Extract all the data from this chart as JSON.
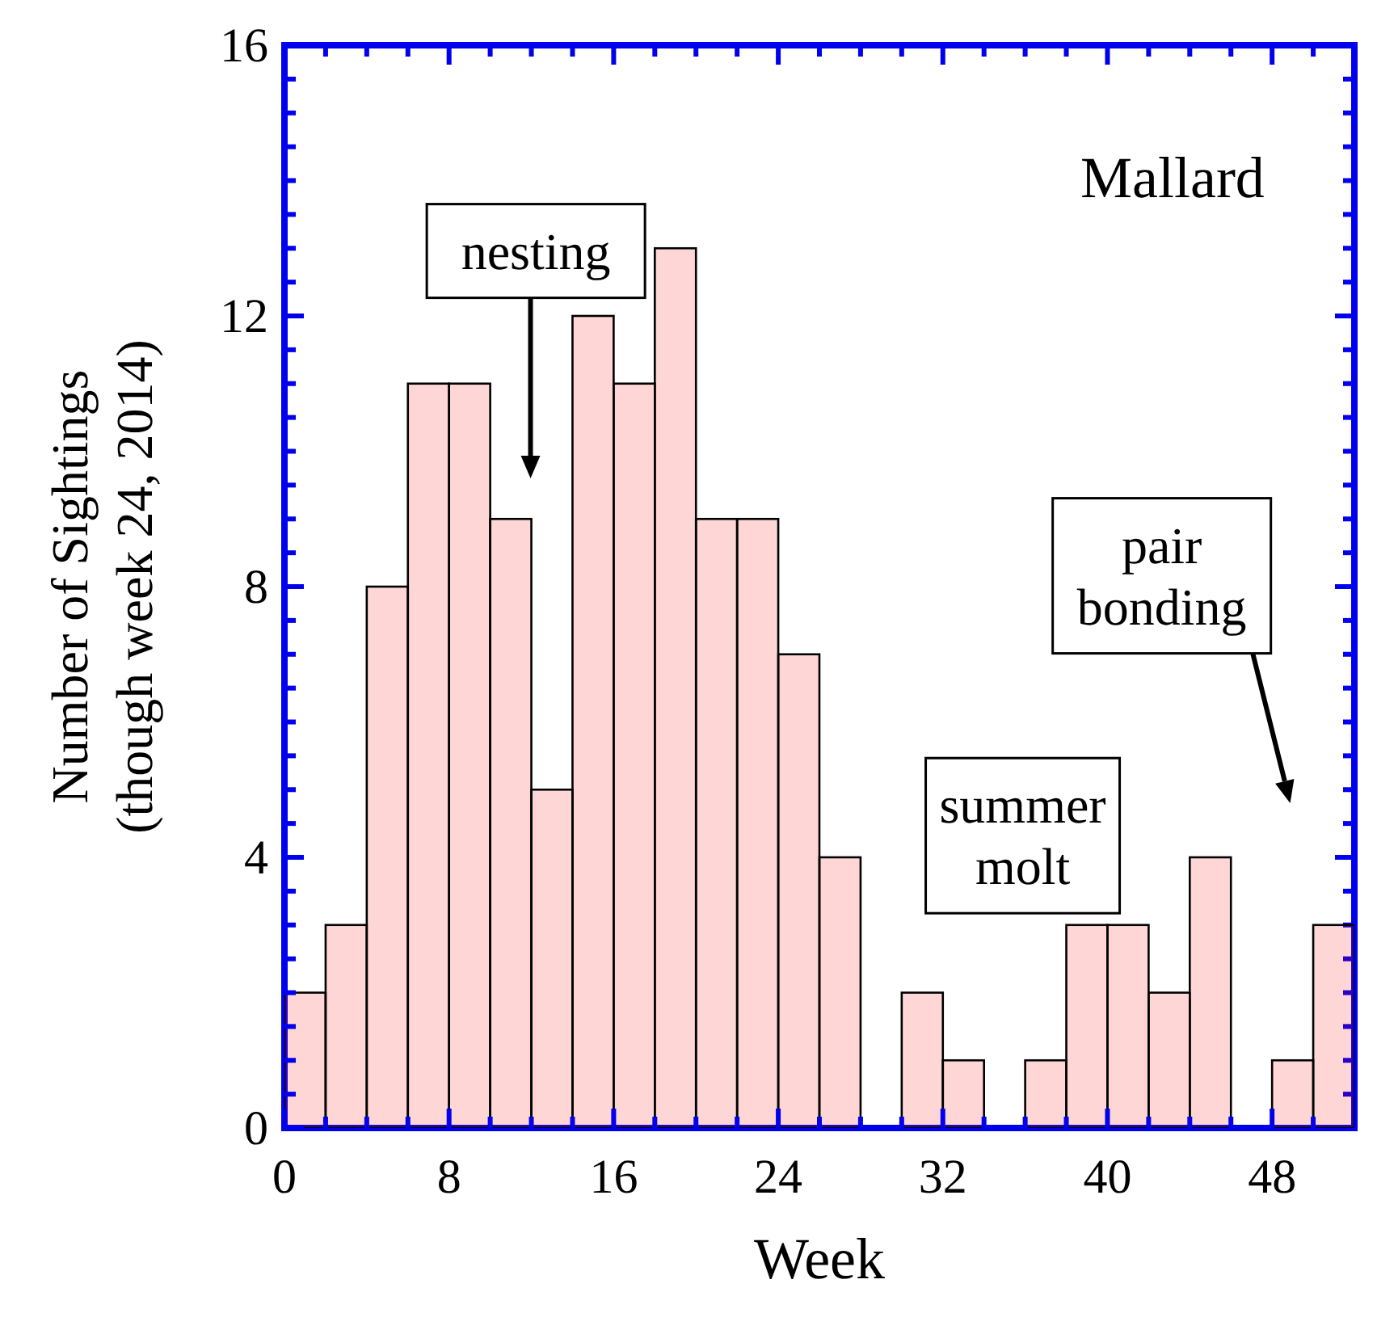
{
  "chart_data": {
    "type": "histogram",
    "xlabel": "Week",
    "ylabel": "Number of Sightings\n(though week 24, 2014)",
    "bins": [
      0,
      2,
      4,
      6,
      8,
      10,
      12,
      14,
      16,
      18,
      20,
      22,
      24,
      26,
      28,
      30,
      32,
      34,
      36,
      38,
      40,
      42,
      44,
      46,
      48,
      50,
      52
    ],
    "values": [
      2,
      3,
      8,
      11,
      11,
      9,
      5,
      12,
      11,
      13,
      9,
      9,
      7,
      4,
      0,
      2,
      1,
      0,
      1,
      3,
      3,
      2,
      4,
      0,
      1,
      3
    ],
    "color": "#ff0000",
    "xlim": [
      0,
      52
    ],
    "xticks": [
      0,
      {
        "value": 2,
        "label": null
      },
      {
        "value": 4,
        "label": null
      },
      {
        "value": 6,
        "label": null
      },
      8,
      {
        "value": 10,
        "label": null
      },
      {
        "value": 12,
        "label": null
      },
      {
        "value": 14,
        "label": null
      },
      16,
      {
        "value": 18,
        "label": null
      },
      {
        "value": 20,
        "label": null
      },
      {
        "value": 22,
        "label": null
      },
      24,
      {
        "value": 26,
        "label": null
      },
      {
        "value": 28,
        "label": null
      },
      {
        "value": 30,
        "label": null
      },
      32,
      {
        "value": 34,
        "label": null
      },
      {
        "value": 36,
        "label": null
      },
      {
        "value": 38,
        "label": null
      },
      40,
      {
        "value": 42,
        "label": null
      },
      {
        "value": 44,
        "label": null
      },
      {
        "value": 46,
        "label": null
      },
      48,
      {
        "value": 50,
        "label": null
      }
    ],
    "ylim": [
      0,
      16
    ],
    "yticks": [
      0,
      {
        "value": 0.5,
        "label": null
      },
      {
        "value": 1,
        "label": null
      },
      {
        "value": 1.5,
        "label": null
      },
      {
        "value": 2,
        "label": null
      },
      {
        "value": 2.5,
        "label": null
      },
      {
        "value": 3,
        "label": null
      },
      {
        "value": 3.5,
        "label": null
      },
      4,
      {
        "value": 4.5,
        "label": null
      },
      {
        "value": 5,
        "label": null
      },
      {
        "value": 5.5,
        "label": null
      },
      {
        "value": 6,
        "label": null
      },
      {
        "value": 6.5,
        "label": null
      },
      {
        "value": 7,
        "label": null
      },
      {
        "value": 7.5,
        "label": null
      },
      8,
      {
        "value": 8.5,
        "label": null
      },
      {
        "value": 9,
        "label": null
      },
      {
        "value": 9.5,
        "label": null
      },
      {
        "value": 10,
        "label": null
      },
      {
        "value": 10.5,
        "label": null
      },
      {
        "value": 11,
        "label": null
      },
      {
        "value": 11.5,
        "label": null
      },
      12,
      {
        "value": 12.5,
        "label": null
      },
      {
        "value": 13,
        "label": null
      },
      {
        "value": 13.5,
        "label": null
      },
      {
        "value": 14,
        "label": null
      },
      {
        "value": 14.5,
        "label": null
      },
      {
        "value": 15,
        "label": null
      },
      {
        "value": 15.5,
        "label": null
      },
      16
    ],
    "annotations": [
      "Mallard",
      "nesting",
      "summer molt",
      "pair bonding"
    ]
  }
}
